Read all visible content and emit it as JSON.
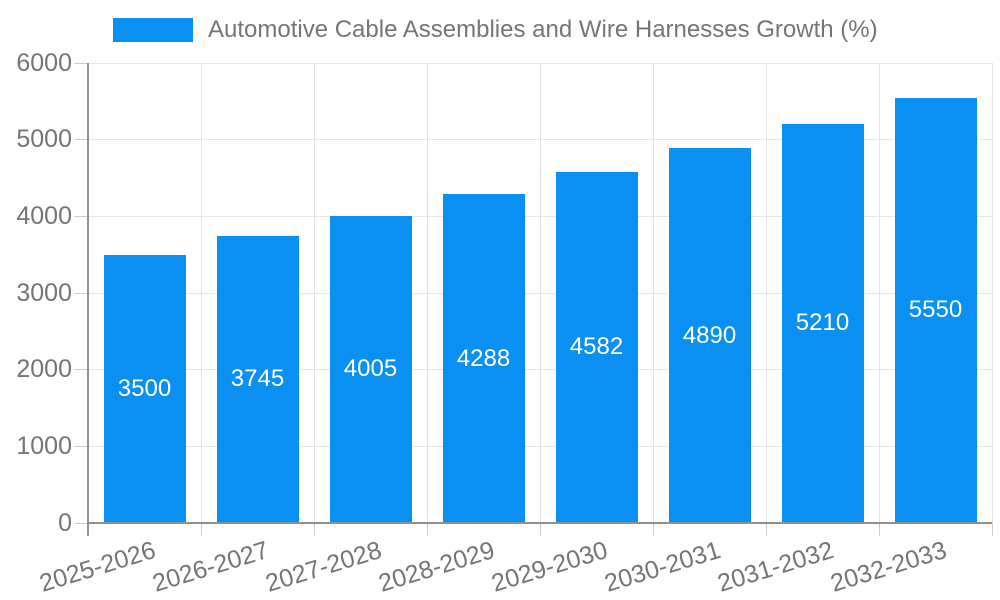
{
  "chart_data": {
    "type": "bar",
    "title": "Automotive Cable Assemblies and Wire Harnesses Growth (%)",
    "categories": [
      "2025-2026",
      "2026-2027",
      "2027-2028",
      "2028-2029",
      "2029-2030",
      "2030-2031",
      "2031-2032",
      "2032-2033"
    ],
    "values": [
      3500,
      3745,
      4005,
      4288,
      4582,
      4890,
      5210,
      5550
    ],
    "xlabel": "",
    "ylabel": "",
    "ylim": [
      0,
      6000
    ],
    "yticks": [
      0,
      1000,
      2000,
      3000,
      4000,
      5000,
      6000
    ],
    "grid": true,
    "legend_position": "top",
    "bar_color": "#0990f2",
    "bar_label_color": "#ffffff",
    "axis_text_color": "#757575",
    "gridline_color": "#e6e6e6",
    "axis_line_color": "#909090"
  }
}
